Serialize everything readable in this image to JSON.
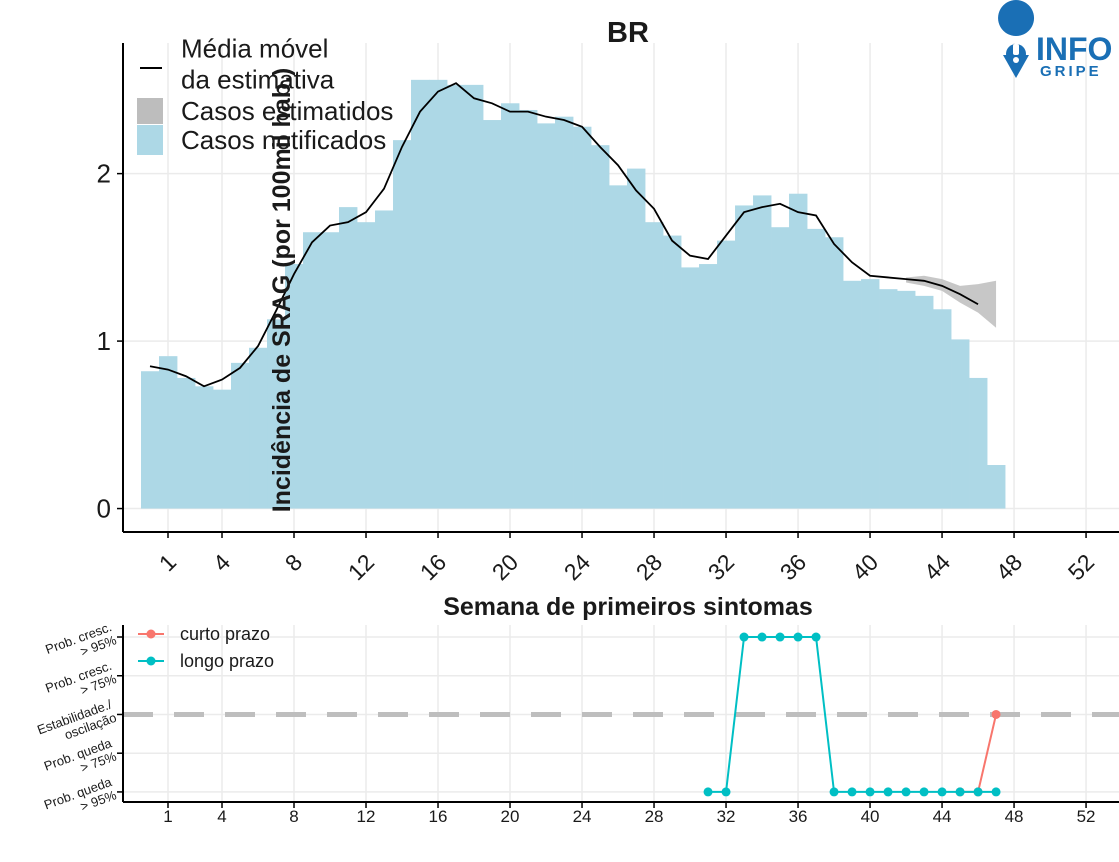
{
  "chart_data": [
    {
      "type": "bar",
      "title": "BR",
      "x_label": "Semana de primeiros sintomas",
      "y_label": "Incidência de SRAG (por 100mil hab.)",
      "xlim": [
        -1.5,
        53.83
      ],
      "xticks": [
        1,
        4,
        8,
        12,
        16,
        20,
        24,
        28,
        32,
        36,
        40,
        44,
        48,
        52
      ],
      "ylim": [
        -0.14,
        2.78
      ],
      "yticks": [
        0,
        1,
        2
      ],
      "grid": true,
      "legend": "top-left",
      "series": [
        {
          "name": "Média móvel\nda estimativa",
          "type": "line",
          "color": "#000000",
          "x": [
            0,
            1,
            2,
            3,
            4,
            5,
            6,
            7,
            8,
            9,
            10,
            11,
            12,
            13,
            14,
            15,
            16,
            17,
            18,
            19,
            20,
            21,
            22,
            23,
            24,
            25,
            26,
            27,
            28,
            29,
            30,
            31,
            32,
            33,
            34,
            35,
            36,
            37,
            38,
            39,
            40,
            41,
            42,
            43,
            44,
            45,
            46
          ],
          "values": [
            0.85,
            0.83,
            0.79,
            0.73,
            0.77,
            0.84,
            0.97,
            1.18,
            1.4,
            1.59,
            1.69,
            1.71,
            1.77,
            1.91,
            2.16,
            2.37,
            2.49,
            2.54,
            2.45,
            2.42,
            2.37,
            2.37,
            2.34,
            2.32,
            2.28,
            2.16,
            2.05,
            1.9,
            1.79,
            1.6,
            1.51,
            1.49,
            1.63,
            1.77,
            1.8,
            1.82,
            1.77,
            1.75,
            1.58,
            1.47,
            1.39,
            1.38,
            1.37,
            1.36,
            1.33,
            1.28,
            1.22
          ]
        },
        {
          "name": "Casos estimatidos",
          "type": "band",
          "color": "#bdbdbd",
          "x": [
            42,
            43,
            44,
            45,
            46,
            47
          ],
          "lower": [
            1.35,
            1.33,
            1.3,
            1.23,
            1.17,
            1.08
          ],
          "upper": [
            1.38,
            1.39,
            1.37,
            1.33,
            1.34,
            1.36
          ]
        },
        {
          "name": "Casos notificados",
          "type": "bar",
          "color": "#add8e6",
          "x": [
            0,
            1,
            2,
            3,
            4,
            5,
            6,
            7,
            8,
            9,
            10,
            11,
            12,
            13,
            14,
            15,
            16,
            17,
            18,
            19,
            20,
            21,
            22,
            23,
            24,
            25,
            26,
            27,
            28,
            29,
            30,
            31,
            32,
            33,
            34,
            35,
            36,
            37,
            38,
            39,
            40,
            41,
            42,
            43,
            44,
            45,
            46,
            47
          ],
          "values": [
            0.82,
            0.91,
            0.78,
            0.73,
            0.71,
            0.87,
            0.96,
            1.13,
            1.46,
            1.65,
            1.65,
            1.8,
            1.71,
            1.78,
            2.2,
            2.56,
            2.56,
            2.53,
            2.53,
            2.32,
            2.42,
            2.38,
            2.3,
            2.34,
            2.28,
            2.17,
            1.93,
            2.03,
            1.71,
            1.63,
            1.44,
            1.46,
            1.6,
            1.81,
            1.87,
            1.68,
            1.88,
            1.67,
            1.62,
            1.36,
            1.37,
            1.31,
            1.3,
            1.27,
            1.19,
            1.01,
            0.78,
            0.26
          ]
        }
      ]
    },
    {
      "type": "line",
      "xlim": [
        -1.5,
        53.83
      ],
      "xticks": [
        1,
        4,
        8,
        12,
        16,
        20,
        24,
        28,
        32,
        36,
        40,
        44,
        48,
        52
      ],
      "ylim": [
        -2.26,
        2.31
      ],
      "yticks": [
        {
          "value": -2,
          "label": "Prob. queda\n> 95%"
        },
        {
          "value": -1,
          "label": "Prob. queda\n> 75%"
        },
        {
          "value": 0,
          "label": "Estabilidade./\noscilação"
        },
        {
          "value": 1,
          "label": "Prob. cresc.\n> 75%"
        },
        {
          "value": 2,
          "label": "Prob. cresc.\n> 95%"
        }
      ],
      "reference_line": 0,
      "grid": true,
      "legend": "top-left",
      "series": [
        {
          "name": "curto prazo",
          "color": "#f8766d",
          "x": [
            45,
            46,
            47
          ],
          "values": [
            -2,
            -2,
            0
          ]
        },
        {
          "name": "longo prazo",
          "color": "#00bfc4",
          "x": [
            31,
            32,
            33,
            34,
            35,
            36,
            37,
            38,
            39,
            40,
            41,
            42,
            43,
            44,
            45,
            46,
            47
          ],
          "values": [
            -2,
            -2,
            2,
            2,
            2,
            2,
            2,
            -2,
            -2,
            -2,
            -2,
            -2,
            -2,
            -2,
            -2,
            -2,
            -2
          ]
        }
      ]
    }
  ],
  "logo": {
    "top": "INFO",
    "bottom": "GRIPE"
  }
}
